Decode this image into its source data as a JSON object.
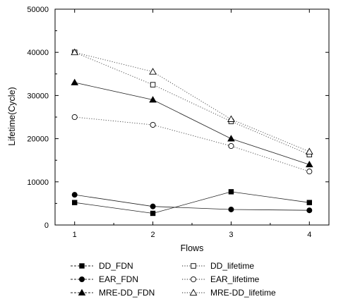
{
  "chart_data": {
    "type": "line",
    "title": "",
    "xlabel": "Flows",
    "ylabel": "Lifetime(Cycle)",
    "x": [
      1,
      2,
      3,
      4
    ],
    "xlim": [
      0.75,
      4.25
    ],
    "ylim": [
      0,
      50000
    ],
    "x_ticks": [
      "1",
      "2",
      "3",
      "4"
    ],
    "y_ticks": [
      "0",
      "10000",
      "20000",
      "30000",
      "40000",
      "50000"
    ],
    "grid": false,
    "legend_position": "bottom",
    "series": [
      {
        "name": "DD_FDN",
        "values": [
          5200,
          2700,
          7700,
          5200
        ],
        "marker": "square",
        "filled": true,
        "dash": "solid"
      },
      {
        "name": "DD_lifetime",
        "values": [
          40000,
          32500,
          24000,
          16300
        ],
        "marker": "square",
        "filled": false,
        "dash": "dotted"
      },
      {
        "name": "EAR_FDN",
        "values": [
          7000,
          4300,
          3600,
          3400
        ],
        "marker": "circle",
        "filled": true,
        "dash": "solid"
      },
      {
        "name": "EAR_lifetime",
        "values": [
          25000,
          23200,
          18300,
          12400
        ],
        "marker": "circle",
        "filled": false,
        "dash": "dotted"
      },
      {
        "name": "MRE-DD_FDN",
        "values": [
          33000,
          29000,
          20000,
          14000
        ],
        "marker": "triangle",
        "filled": true,
        "dash": "solid"
      },
      {
        "name": "MRE-DD_lifetime",
        "values": [
          40000,
          35500,
          24500,
          17000
        ],
        "marker": "triangle",
        "filled": false,
        "dash": "dotted"
      }
    ],
    "legend": {
      "items": [
        {
          "label": "DD_FDN"
        },
        {
          "label": "DD_lifetime"
        },
        {
          "label": "EAR_FDN"
        },
        {
          "label": "EAR_lifetime"
        },
        {
          "label": "MRE-DD_FDN"
        },
        {
          "label": "MRE-DD_lifetime"
        }
      ]
    }
  }
}
